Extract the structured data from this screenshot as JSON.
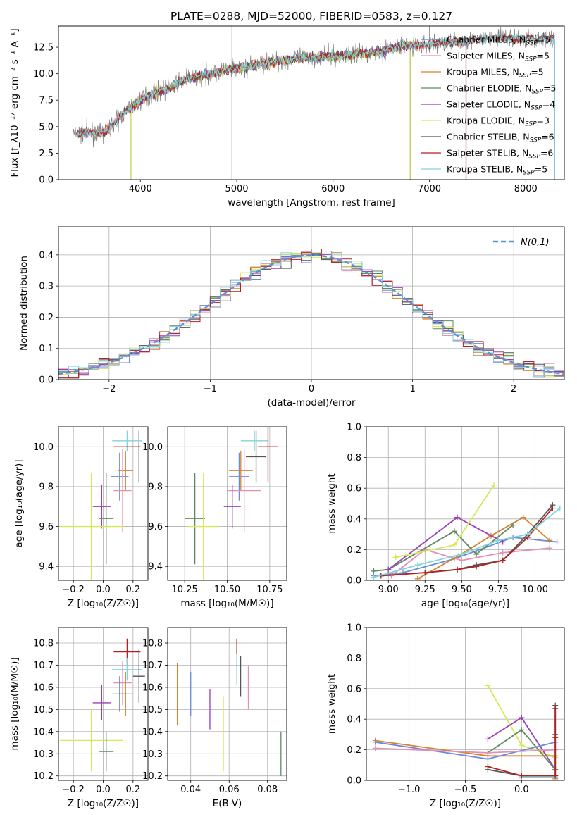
{
  "colors": {
    "chabrier_miles": "#6b8ad8",
    "salpeter_miles": "#e58fb6",
    "kroupa_miles": "#d8822f",
    "chabrier_elodie": "#5e8a62",
    "salpeter_elodie": "#9a3fb5",
    "kroupa_elodie": "#d6e859",
    "chabrier_stelib": "#555555",
    "salpeter_stelib": "#b22222",
    "kroupa_stelib": "#80d6dc",
    "data": "#808080"
  },
  "chart_data": [
    {
      "id": "spectrum",
      "type": "line",
      "title": "PLATE=0288, MJD=52000, FIBERID=0583, z=0.127",
      "xlabel": "wavelength [Angstrom, rest frame]",
      "ylabel": "Flux [f_λ10⁻¹⁷ erg cm⁻² s⁻¹ A⁻¹]",
      "xlim": [
        3150,
        8400
      ],
      "ylim": [
        0,
        14.5
      ],
      "xticks": [
        4000,
        5000,
        6000,
        7000,
        8000
      ],
      "yticks": [
        "0.0",
        "2.5",
        "5.0",
        "7.5",
        "10.0",
        "12.5"
      ],
      "grid": false,
      "legend_position": "top-right",
      "continuum_points": [
        [
          3350,
          4.3
        ],
        [
          3450,
          4.5
        ],
        [
          3550,
          4.3
        ],
        [
          3650,
          4.6
        ],
        [
          3750,
          5.5
        ],
        [
          3850,
          6.5
        ],
        [
          3950,
          7.1
        ],
        [
          4050,
          7.8
        ],
        [
          4150,
          8.2
        ],
        [
          4300,
          8.7
        ],
        [
          4500,
          9.6
        ],
        [
          4700,
          9.9
        ],
        [
          4900,
          10.4
        ],
        [
          5100,
          10.6
        ],
        [
          5300,
          11.0
        ],
        [
          5500,
          11.3
        ],
        [
          5700,
          11.5
        ],
        [
          5900,
          11.6
        ],
        [
          6100,
          11.7
        ],
        [
          6300,
          11.9
        ],
        [
          6500,
          12.1
        ],
        [
          6700,
          12.6
        ],
        [
          6900,
          12.7
        ],
        [
          7100,
          12.9
        ],
        [
          7300,
          13.0
        ],
        [
          7500,
          13.2
        ],
        [
          7700,
          13.4
        ],
        [
          7900,
          13.3
        ],
        [
          8100,
          13.3
        ]
      ],
      "series": [
        {
          "name": "Chabrier MILES, N_SSP=5",
          "color_key": "chabrier_miles",
          "x_range": [
            3350,
            7380
          ]
        },
        {
          "name": "Salpeter MILES, N_SSP=5",
          "color_key": "salpeter_miles",
          "x_range": [
            3350,
            7380
          ]
        },
        {
          "name": "Kroupa MILES, N_SSP=5",
          "color_key": "kroupa_miles",
          "x_range": [
            3350,
            7380
          ]
        },
        {
          "name": "Chabrier ELODIE, N_SSP=5",
          "color_key": "chabrier_elodie",
          "x_range": [
            3900,
            6800
          ]
        },
        {
          "name": "Salpeter ELODIE, N_SSP=4",
          "color_key": "salpeter_elodie",
          "x_range": [
            3900,
            6800
          ]
        },
        {
          "name": "Kroupa ELODIE, N_SSP=3",
          "color_key": "kroupa_elodie",
          "x_range": [
            3900,
            6800
          ]
        },
        {
          "name": "Chabrier STELIB, N_SSP=6",
          "color_key": "chabrier_stelib",
          "x_range": [
            3350,
            8300
          ]
        },
        {
          "name": "Salpeter STELIB, N_SSP=6",
          "color_key": "salpeter_stelib",
          "x_range": [
            3350,
            8300
          ]
        },
        {
          "name": "Kroupa STELIB, N_SSP=5",
          "color_key": "kroupa_stelib",
          "x_range": [
            3350,
            8300
          ]
        }
      ],
      "data_trace": {
        "color_key": "data",
        "x_range": [
          3300,
          8300
        ],
        "spikes": [
          [
            4950,
            0,
            14.5
          ],
          [
            7000,
            14.5,
            12.0
          ]
        ]
      }
    },
    {
      "id": "residuals",
      "type": "line",
      "xlabel": "(data-model)/error",
      "ylabel": "Normed distribution",
      "xlim": [
        -2.5,
        2.5
      ],
      "ylim": [
        0,
        0.49
      ],
      "xticks": [
        "−2",
        "−1",
        "0",
        "1",
        "2"
      ],
      "yticks": [
        "0.0",
        "0.1",
        "0.2",
        "0.3",
        "0.4"
      ],
      "grid": true,
      "legend_position": "top-right",
      "legend_label": "N(0,1)",
      "bin_width": 0.1
    },
    {
      "id": "z-vs-age",
      "type": "scatter",
      "xlabel": "Z [log₁₀(Z/Z☉)]",
      "ylabel": "age  [log₁₀(age/yr)]",
      "xlim": [
        -0.3,
        0.3
      ],
      "ylim": [
        9.33,
        10.1
      ],
      "xticks": [
        "−0.2",
        "0.0",
        "0.2"
      ],
      "yticks": [
        "9.4",
        "9.6",
        "9.8",
        "10.0"
      ],
      "grid": true,
      "points": [
        {
          "c": "chabrier_stelib",
          "x": 0.24,
          "y": 9.95,
          "ex": 0.0,
          "ey": 0.13
        },
        {
          "c": "kroupa_stelib",
          "x": 0.16,
          "y": 10.03,
          "ex": 0.1,
          "ey": 0.05
        },
        {
          "c": "salpeter_stelib",
          "x": 0.16,
          "y": 10.0,
          "ex": 0.09,
          "ey": 0.0
        },
        {
          "c": "chabrier_miles",
          "x": 0.11,
          "y": 9.85,
          "ex": 0.06,
          "ey": 0.12
        },
        {
          "c": "kroupa_miles",
          "x": 0.15,
          "y": 9.88,
          "ex": 0.05,
          "ey": 0.1
        },
        {
          "c": "salpeter_miles",
          "x": 0.13,
          "y": 9.78,
          "ex": 0.06,
          "ey": 0.21
        },
        {
          "c": "salpeter_elodie",
          "x": -0.01,
          "y": 9.7,
          "ex": 0.06,
          "ey": 0.11
        },
        {
          "c": "chabrier_elodie",
          "x": 0.02,
          "y": 9.64,
          "ex": 0.05,
          "ey": 0.23
        },
        {
          "c": "kroupa_elodie",
          "x": -0.08,
          "y": 9.6,
          "ex": 0.21,
          "ey": 0.27
        }
      ]
    },
    {
      "id": "mass-vs-age",
      "type": "scatter",
      "xlabel": "mass [log₁₀(M/M☉)]",
      "ylabel": "",
      "xlim": [
        10.15,
        10.85
      ],
      "ylim": [
        9.33,
        10.1
      ],
      "xticks": [
        "10.25",
        "10.50",
        "10.75"
      ],
      "yticks": [
        "9.4",
        "9.6",
        "9.8",
        "10.0"
      ],
      "grid": true,
      "points": [
        {
          "c": "chabrier_stelib",
          "x": 10.67,
          "y": 9.95,
          "ex": 0.06,
          "ey": 0.13
        },
        {
          "c": "kroupa_stelib",
          "x": 10.66,
          "y": 10.03,
          "ex": 0.08,
          "ey": 0.05
        },
        {
          "c": "salpeter_stelib",
          "x": 10.74,
          "y": 10.0,
          "ex": 0.06,
          "ey": 0.18
        },
        {
          "c": "chabrier_miles",
          "x": 10.57,
          "y": 9.85,
          "ex": 0.06,
          "ey": 0.12
        },
        {
          "c": "kroupa_miles",
          "x": 10.58,
          "y": 9.88,
          "ex": 0.07,
          "ey": 0.1
        },
        {
          "c": "salpeter_miles",
          "x": 10.6,
          "y": 9.78,
          "ex": 0.1,
          "ey": 0.21
        },
        {
          "c": "salpeter_elodie",
          "x": 10.53,
          "y": 9.7,
          "ex": 0.05,
          "ey": 0.11
        },
        {
          "c": "chabrier_elodie",
          "x": 10.31,
          "y": 9.64,
          "ex": 0.06,
          "ey": 0.23
        },
        {
          "c": "kroupa_elodie",
          "x": 10.36,
          "y": 9.6,
          "ex": 0.09,
          "ey": 0.27
        }
      ]
    },
    {
      "id": "age-vs-weight",
      "type": "line",
      "xlabel": "age  [log₁₀(age/yr)]",
      "ylabel": "mass weight",
      "xlim": [
        8.85,
        10.2
      ],
      "ylim": [
        0,
        1.0
      ],
      "xticks": [
        "9.00",
        "9.25",
        "9.50",
        "9.75",
        "10.00"
      ],
      "yticks": [
        "0.0",
        "0.2",
        "0.4",
        "0.6",
        "0.8",
        "1.0"
      ],
      "grid": true,
      "series": [
        {
          "c": "chabrier_miles",
          "x": [
            8.9,
            9.1,
            9.45,
            9.85,
            10.15
          ],
          "y": [
            0.03,
            0.05,
            0.14,
            0.28,
            0.25
          ]
        },
        {
          "c": "salpeter_miles",
          "x": [
            9.02,
            9.25,
            9.5,
            9.78,
            10.1
          ],
          "y": [
            0.03,
            0.2,
            0.13,
            0.18,
            0.21
          ]
        },
        {
          "c": "kroupa_miles",
          "x": [
            9.2,
            9.48,
            9.7,
            9.92,
            10.1
          ],
          "y": [
            0.01,
            0.16,
            0.29,
            0.41,
            0.26
          ]
        },
        {
          "c": "chabrier_elodie",
          "x": [
            8.9,
            9.0,
            9.45,
            9.6,
            9.85
          ],
          "y": [
            0.06,
            0.07,
            0.32,
            0.17,
            0.36
          ]
        },
        {
          "c": "salpeter_elodie",
          "x": [
            9.0,
            9.47,
            9.78
          ],
          "y": [
            0.07,
            0.41,
            0.25
          ]
        },
        {
          "c": "kroupa_elodie",
          "x": [
            9.05,
            9.45,
            9.72
          ],
          "y": [
            0.15,
            0.23,
            0.62
          ]
        },
        {
          "c": "chabrier_stelib",
          "x": [
            8.95,
            9.25,
            9.47,
            9.6,
            9.78,
            9.95,
            10.12
          ],
          "y": [
            0.03,
            0.05,
            0.07,
            0.1,
            0.13,
            0.3,
            0.49
          ]
        },
        {
          "c": "salpeter_stelib",
          "x": [
            8.95,
            9.25,
            9.47,
            9.6,
            9.78,
            9.95,
            10.12
          ],
          "y": [
            0.03,
            0.05,
            0.07,
            0.09,
            0.13,
            0.28,
            0.47
          ]
        },
        {
          "c": "kroupa_stelib",
          "x": [
            8.9,
            9.2,
            9.5,
            9.75,
            9.95,
            10.17
          ],
          "y": [
            0.02,
            0.1,
            0.17,
            0.26,
            0.3,
            0.47
          ]
        }
      ]
    },
    {
      "id": "z-vs-mass",
      "type": "scatter",
      "xlabel": "Z [log₁₀(Z/Z☉)]",
      "ylabel": "mass [log₁₀(M/M☉)]",
      "xlim": [
        -0.3,
        0.3
      ],
      "ylim": [
        10.18,
        10.87
      ],
      "xticks": [
        "−0.2",
        "0.0",
        "0.2"
      ],
      "yticks": [
        "10.2",
        "10.3",
        "10.4",
        "10.5",
        "10.6",
        "10.7",
        "10.8"
      ],
      "grid": true,
      "points": [
        {
          "c": "salpeter_stelib",
          "x": 0.16,
          "y": 10.76,
          "ex": 0.09,
          "ey": 0.06
        },
        {
          "c": "kroupa_stelib",
          "x": 0.16,
          "y": 10.68,
          "ex": 0.1,
          "ey": 0.05
        },
        {
          "c": "chabrier_stelib",
          "x": 0.24,
          "y": 10.65,
          "ex": 0.04,
          "ey": 0.12
        },
        {
          "c": "salpeter_miles",
          "x": 0.13,
          "y": 10.62,
          "ex": 0.06,
          "ey": 0.1
        },
        {
          "c": "chabrier_miles",
          "x": 0.11,
          "y": 10.57,
          "ex": 0.05,
          "ey": 0.08
        },
        {
          "c": "kroupa_miles",
          "x": 0.15,
          "y": 10.57,
          "ex": 0.05,
          "ey": 0.1
        },
        {
          "c": "salpeter_elodie",
          "x": -0.01,
          "y": 10.53,
          "ex": 0.06,
          "ey": 0.08
        },
        {
          "c": "kroupa_elodie",
          "x": -0.08,
          "y": 10.36,
          "ex": 0.21,
          "ey": 0.14
        },
        {
          "c": "chabrier_elodie",
          "x": 0.02,
          "y": 10.31,
          "ex": 0.05,
          "ey": 0.09
        }
      ]
    },
    {
      "id": "ebv-vs-mass",
      "type": "scatter",
      "xlabel": "E(B-V)",
      "ylabel": "",
      "xlim": [
        0.028,
        0.09
      ],
      "ylim": [
        10.18,
        10.87
      ],
      "xticks": [
        "0.04",
        "0.06",
        "0.08"
      ],
      "yticks": [
        "10.2",
        "10.3",
        "10.4",
        "10.5",
        "10.6",
        "10.7",
        "10.8"
      ],
      "grid": true,
      "points": [
        {
          "c": "kroupa_miles",
          "x": 0.033,
          "y": 10.57,
          "ex": 0,
          "ey": 0.14
        },
        {
          "c": "chabrier_miles",
          "x": 0.04,
          "y": 10.57,
          "ex": 0,
          "ey": 0.1
        },
        {
          "c": "salpeter_elodie",
          "x": 0.05,
          "y": 10.5,
          "ex": 0,
          "ey": 0.09
        },
        {
          "c": "kroupa_elodie",
          "x": 0.057,
          "y": 10.39,
          "ex": 0,
          "ey": 0.17
        },
        {
          "c": "salpeter_stelib",
          "x": 0.064,
          "y": 10.73,
          "ex": 0,
          "ey": 0.09
        },
        {
          "c": "kroupa_stelib",
          "x": 0.064,
          "y": 10.68,
          "ex": 0,
          "ey": 0.07
        },
        {
          "c": "chabrier_stelib",
          "x": 0.066,
          "y": 10.65,
          "ex": 0,
          "ey": 0.09
        },
        {
          "c": "salpeter_miles",
          "x": 0.07,
          "y": 10.6,
          "ex": 0,
          "ey": 0.1
        },
        {
          "c": "chabrier_elodie",
          "x": 0.087,
          "y": 10.3,
          "ex": 0,
          "ey": 0.1
        }
      ]
    },
    {
      "id": "z-vs-weight",
      "type": "line",
      "xlabel": "Z [log₁₀(Z/Z☉)]",
      "ylabel": "mass weight",
      "xlim": [
        -1.38,
        0.38
      ],
      "ylim": [
        0,
        1.0
      ],
      "xticks": [
        "−1.0",
        "−0.5",
        "0.0"
      ],
      "yticks": [
        "0.0",
        "0.2",
        "0.4",
        "0.6",
        "0.8",
        "1.0"
      ],
      "grid": true,
      "series": [
        {
          "c": "kroupa_elodie",
          "x": [
            -0.3,
            0.0,
            0.3
          ],
          "y": [
            0.62,
            0.23,
            0.15
          ]
        },
        {
          "c": "salpeter_elodie",
          "x": [
            -0.3,
            0.0,
            0.3
          ],
          "y": [
            0.27,
            0.41,
            0.07
          ]
        },
        {
          "c": "chabrier_elodie",
          "x": [
            -0.3,
            0.0,
            0.3
          ],
          "y": [
            0.18,
            0.33,
            0.07
          ]
        },
        {
          "c": "kroupa_miles",
          "x": [
            -1.3,
            -0.3,
            0.3,
            0.3
          ],
          "y": [
            0.26,
            0.16,
            0.16,
            0.01
          ]
        },
        {
          "c": "chabrier_miles",
          "x": [
            -1.3,
            -0.3,
            0.3
          ],
          "y": [
            0.25,
            0.14,
            0.25
          ]
        },
        {
          "c": "salpeter_miles",
          "x": [
            -1.3,
            -0.3,
            0.3
          ],
          "y": [
            0.21,
            0.18,
            0.2
          ]
        },
        {
          "c": "kroupa_stelib",
          "x": [
            0.0,
            0.3,
            0.3
          ],
          "y": [
            0.02,
            0.02,
            0.47
          ]
        },
        {
          "c": "chabrier_stelib",
          "x": [
            -0.3,
            0.0,
            0.3,
            0.3,
            0.3
          ],
          "y": [
            0.07,
            0.03,
            0.03,
            0.49,
            0.3
          ]
        },
        {
          "c": "salpeter_stelib",
          "x": [
            -0.3,
            0.0,
            0.3,
            0.3,
            0.3
          ],
          "y": [
            0.09,
            0.03,
            0.03,
            0.47,
            0.28
          ]
        }
      ]
    }
  ]
}
